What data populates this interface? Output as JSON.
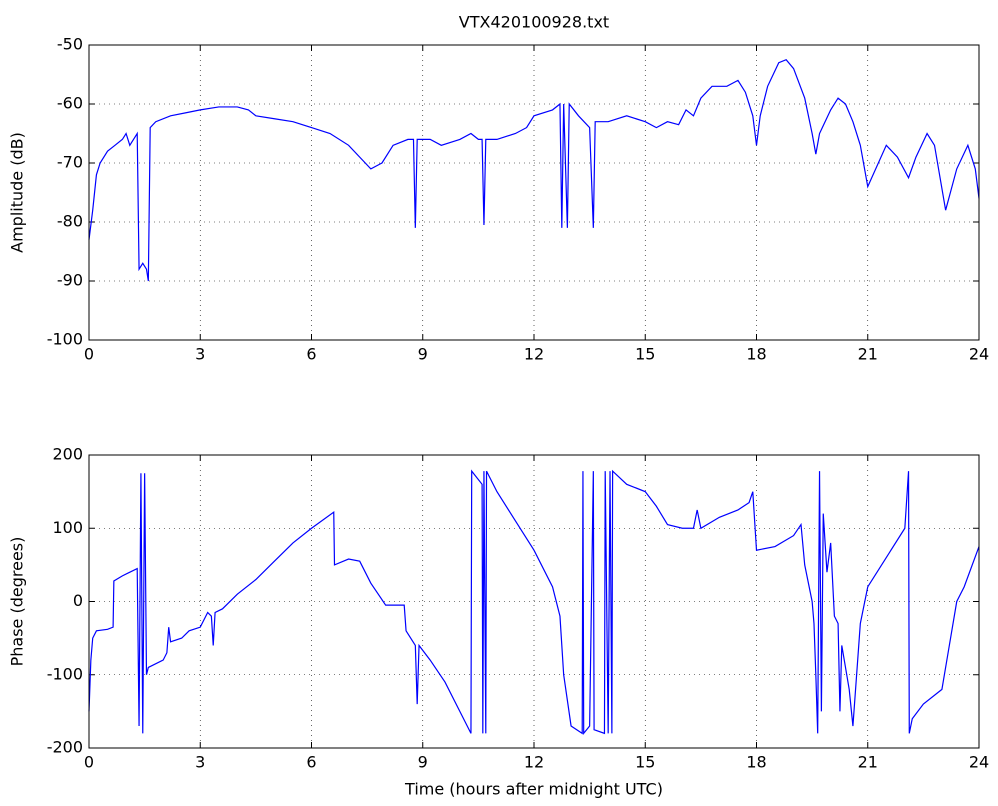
{
  "chart_data": [
    {
      "type": "line",
      "title": "VTX420100928.txt",
      "ylabel": "Amplitude (dB)",
      "color": "#0000ff",
      "grid": true,
      "xlim": [
        0,
        24
      ],
      "xticks": [
        0,
        3,
        6,
        9,
        12,
        15,
        18,
        21,
        24
      ],
      "ylim": [
        -100,
        -50
      ],
      "yticks": [
        -100,
        -90,
        -80,
        -70,
        -60,
        -50
      ],
      "x": [
        0,
        0.1,
        0.2,
        0.3,
        0.5,
        0.7,
        0.9,
        1.0,
        1.1,
        1.3,
        1.35,
        1.45,
        1.55,
        1.6,
        1.65,
        1.8,
        2.2,
        2.6,
        3.0,
        3.5,
        4.0,
        4.3,
        4.5,
        5.0,
        5.5,
        6.0,
        6.5,
        7.0,
        7.3,
        7.6,
        7.9,
        8.2,
        8.6,
        8.75,
        8.8,
        8.85,
        9.2,
        9.5,
        10.0,
        10.3,
        10.5,
        10.6,
        10.65,
        10.7,
        11.0,
        11.5,
        11.8,
        12.0,
        12.5,
        12.7,
        12.75,
        12.8,
        12.9,
        12.95,
        13.2,
        13.5,
        13.6,
        13.65,
        14.0,
        14.5,
        15.0,
        15.3,
        15.6,
        15.9,
        16.1,
        16.3,
        16.5,
        16.8,
        17.2,
        17.5,
        17.7,
        17.9,
        18.0,
        18.1,
        18.3,
        18.6,
        18.8,
        19.0,
        19.3,
        19.5,
        19.6,
        19.7,
        20.0,
        20.2,
        20.4,
        20.6,
        20.8,
        21.0,
        21.5,
        21.8,
        22.1,
        22.3,
        22.6,
        22.8,
        23.1,
        23.4,
        23.7,
        23.9,
        24.0
      ],
      "values": [
        -83,
        -78,
        -72,
        -70,
        -68,
        -67,
        -66,
        -65,
        -67,
        -65,
        -88,
        -87,
        -88,
        -90,
        -64,
        -63,
        -62,
        -61.5,
        -61,
        -60.5,
        -60.5,
        -61,
        -62,
        -62.5,
        -63,
        -64,
        -65,
        -67,
        -69,
        -71,
        -70,
        -67,
        -66,
        -66,
        -81,
        -66,
        -66,
        -67,
        -66,
        -65,
        -66,
        -66,
        -80.5,
        -66,
        -66,
        -65,
        -64,
        -62,
        -61,
        -60,
        -81,
        -60,
        -81,
        -60,
        -62,
        -64,
        -81,
        -63,
        -63,
        -62,
        -63,
        -64,
        -63,
        -63.5,
        -61,
        -62,
        -59,
        -57,
        -57,
        -56,
        -58,
        -62,
        -67,
        -62,
        -57,
        -53,
        -52.5,
        -54,
        -59,
        -65,
        -68.5,
        -65,
        -61,
        -59,
        -60,
        -63,
        -67,
        -74,
        -67,
        -69,
        -72.5,
        -69,
        -65,
        -67,
        -78,
        -71,
        -67,
        -71,
        -76
      ]
    },
    {
      "type": "line",
      "ylabel": "Phase (degrees)",
      "xlabel": "Time (hours after midnight UTC)",
      "color": "#0000ff",
      "grid": true,
      "xlim": [
        0,
        24
      ],
      "xticks": [
        0,
        3,
        6,
        9,
        12,
        15,
        18,
        21,
        24
      ],
      "ylim": [
        -200,
        200
      ],
      "yticks": [
        -200,
        -100,
        0,
        100,
        200
      ],
      "x": [
        0,
        0.05,
        0.1,
        0.2,
        0.5,
        0.65,
        0.67,
        0.9,
        1.3,
        1.35,
        1.4,
        1.45,
        1.5,
        1.55,
        1.6,
        2.0,
        2.1,
        2.15,
        2.2,
        2.5,
        2.7,
        3.0,
        3.2,
        3.3,
        3.35,
        3.4,
        3.6,
        4.0,
        4.5,
        5.0,
        5.5,
        6.0,
        6.6,
        6.62,
        7.0,
        7.3,
        7.6,
        8.0,
        8.5,
        8.55,
        8.8,
        8.85,
        8.9,
        9.2,
        9.6,
        10.0,
        10.3,
        10.32,
        10.6,
        10.62,
        10.65,
        10.7,
        10.72,
        11.0,
        11.5,
        12.0,
        12.5,
        12.7,
        12.8,
        13.0,
        13.3,
        13.32,
        13.34,
        13.5,
        13.6,
        13.62,
        13.9,
        13.92,
        14.0,
        14.05,
        14.1,
        14.12,
        14.5,
        15.0,
        15.3,
        15.6,
        16.0,
        16.3,
        16.4,
        16.5,
        17.0,
        17.5,
        17.8,
        17.9,
        18.0,
        18.5,
        19.0,
        19.2,
        19.3,
        19.5,
        19.55,
        19.6,
        19.65,
        19.7,
        19.75,
        19.8,
        19.9,
        20.0,
        20.1,
        20.2,
        20.25,
        20.3,
        20.5,
        20.6,
        20.8,
        21.0,
        21.5,
        22.0,
        22.1,
        22.12,
        22.2,
        22.5,
        23.0,
        23.2,
        23.4,
        23.6,
        24.0
      ],
      "values": [
        -150,
        -80,
        -50,
        -40,
        -38,
        -35,
        28,
        35,
        45,
        -170,
        175,
        -180,
        175,
        -100,
        -90,
        -80,
        -70,
        -35,
        -55,
        -50,
        -40,
        -35,
        -15,
        -20,
        -60,
        -15,
        -10,
        10,
        30,
        55,
        80,
        100,
        122,
        50,
        58,
        55,
        25,
        -5,
        -5,
        -40,
        -60,
        -140,
        -60,
        -80,
        -110,
        -150,
        -180,
        178,
        160,
        -180,
        178,
        -180,
        178,
        150,
        110,
        70,
        20,
        -20,
        -100,
        -170,
        -180,
        178,
        -180,
        -170,
        178,
        -175,
        -180,
        178,
        -180,
        178,
        -180,
        178,
        160,
        150,
        130,
        105,
        100,
        100,
        125,
        100,
        115,
        125,
        135,
        150,
        70,
        75,
        90,
        105,
        50,
        0,
        -30,
        -100,
        -180,
        178,
        -150,
        120,
        40,
        80,
        -20,
        -30,
        -150,
        -60,
        -120,
        -170,
        -30,
        20,
        60,
        100,
        178,
        -180,
        -160,
        -140,
        -120,
        -60,
        0,
        20,
        75
      ]
    }
  ]
}
